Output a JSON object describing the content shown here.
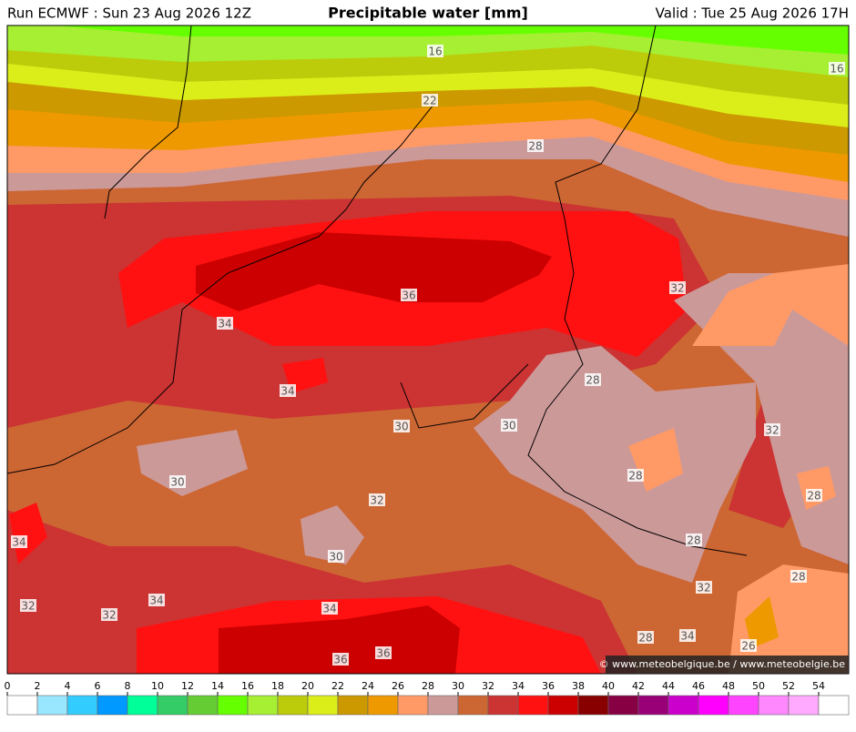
{
  "header": {
    "run": "Run ECMWF : Sun 23 Aug 2026 12Z",
    "title": "Precipitable water [mm]",
    "valid": "Valid : Tue 25 Aug 2026 17H"
  },
  "contour_labels": [
    "16",
    "16",
    "22",
    "28",
    "32",
    "36",
    "34",
    "34",
    "28",
    "30",
    "30",
    "32",
    "30",
    "32",
    "28",
    "28",
    "34",
    "30",
    "28",
    "28",
    "32",
    "34",
    "32",
    "34",
    "32",
    "28",
    "34",
    "26",
    "36",
    "36"
  ],
  "colorbar": {
    "ticks": [
      0,
      2,
      4,
      6,
      8,
      10,
      12,
      14,
      16,
      18,
      20,
      22,
      24,
      26,
      28,
      30,
      32,
      34,
      36,
      38,
      40,
      42,
      44,
      46,
      48,
      50,
      52,
      54
    ],
    "colors": [
      "#ffffff",
      "#99e6ff",
      "#33ccff",
      "#0099ff",
      "#00ff99",
      "#33cc66",
      "#66cc33",
      "#66ff00",
      "#a6ef33",
      "#bdcc0a",
      "#dbee1a",
      "#cc9900",
      "#ee9900",
      "#ff9966",
      "#cc9999",
      "#cc6633",
      "#cc3333",
      "#ff1111",
      "#cc0000",
      "#880000",
      "#880044",
      "#990077",
      "#cc00cc",
      "#ff00ff",
      "#ff44ff",
      "#ff88ff",
      "#ffaaff",
      "#ffffff"
    ]
  },
  "copyright": "© www.meteobelgique.be / www.meteobelgie.be"
}
